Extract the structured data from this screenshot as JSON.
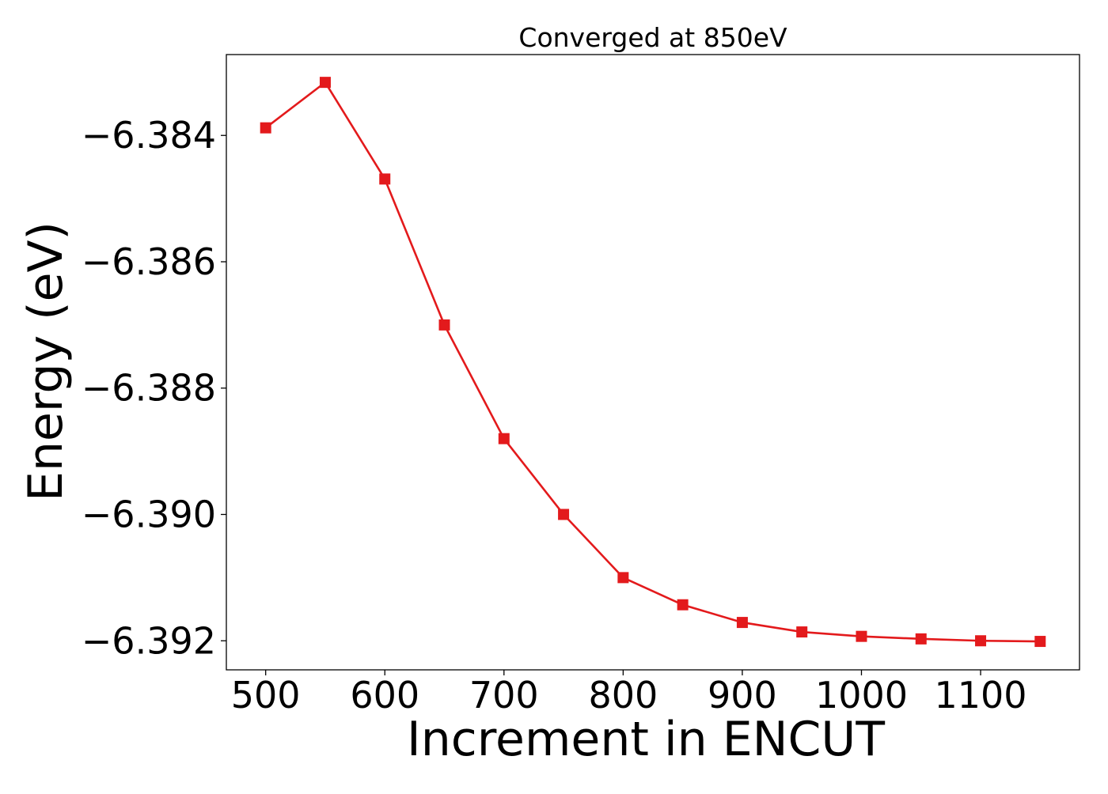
{
  "chart_data": {
    "type": "line",
    "title": "Converged at 850eV",
    "xlabel": "Increment in ENCUT",
    "ylabel": "Energy (eV)",
    "xlim": [
      467,
      1183
    ],
    "ylim": [
      -6.39246,
      -6.38272
    ],
    "xticks": [
      500,
      600,
      700,
      800,
      900,
      1000,
      1100
    ],
    "xtick_labels": [
      "500",
      "600",
      "700",
      "800",
      "900",
      "1000",
      "1100"
    ],
    "yticks": [
      -6.384,
      -6.386,
      -6.388,
      -6.39,
      -6.392
    ],
    "ytick_labels": [
      "−6.384",
      "−6.386",
      "−6.388",
      "−6.390",
      "−6.392"
    ],
    "grid": false,
    "series": [
      {
        "color": "#e31a1c",
        "marker": "square",
        "x": [
          500,
          550,
          600,
          650,
          700,
          750,
          800,
          850,
          900,
          950,
          1000,
          1050,
          1100,
          1150
        ],
        "y": [
          -6.38388,
          -6.38316,
          -6.38469,
          -6.387,
          -6.3888,
          -6.39,
          -6.391,
          -6.39143,
          -6.39171,
          -6.39186,
          -6.39193,
          -6.39197,
          -6.392,
          -6.39201
        ]
      }
    ]
  }
}
